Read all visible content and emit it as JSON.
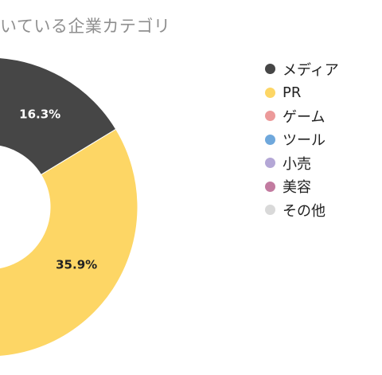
{
  "chart_data": {
    "type": "pie",
    "title": "いている企業カテゴリ",
    "legend_position": "right",
    "slices": [
      {
        "label": "メディア",
        "value": 16.3,
        "value_label": "16.3%",
        "color": "#464646",
        "label_color": "#ffffff"
      },
      {
        "label": "PR",
        "value": 35.9,
        "value_label": "35.9%",
        "color": "#FDD665",
        "label_color": "#222222"
      },
      {
        "label": "ゲーム",
        "value": null,
        "color": "#EC9A9A"
      },
      {
        "label": "ツール",
        "value": null,
        "color": "#6FA8DC"
      },
      {
        "label": "小売",
        "value": null,
        "color": "#B4A7D6"
      },
      {
        "label": "美容",
        "value": null,
        "color": "#C27BA0"
      },
      {
        "label": "その他",
        "value": null,
        "color": "#D9D9D9"
      }
    ]
  }
}
